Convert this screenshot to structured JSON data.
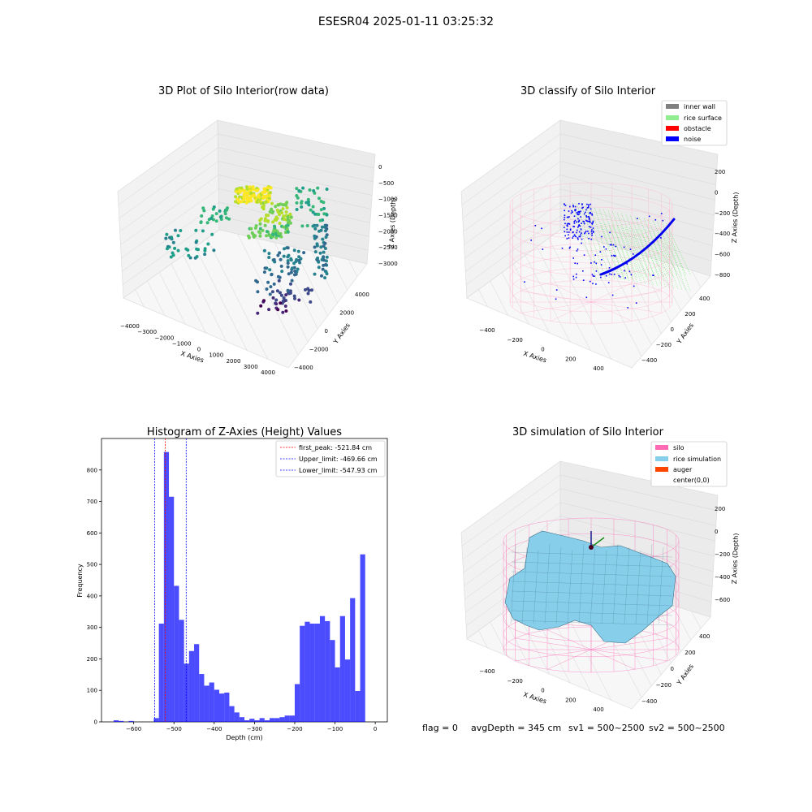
{
  "suptitle": "ESESR04 2025-01-11 03:25:32",
  "panels": {
    "raw": {
      "title": "3D Plot of Silo Interior(row data)",
      "xlabel": "X Axies",
      "ylabel": "Y Axies",
      "zlabel": "Z Axies (Depth)",
      "xticks": [
        "−4000",
        "−3000",
        "−2000",
        "−1000",
        "0",
        "1000",
        "2000",
        "3000",
        "4000"
      ],
      "yticks": [
        "−4000",
        "−2000",
        "0",
        "2000",
        "4000"
      ],
      "zticks": [
        "0",
        "−500",
        "−1000",
        "−1500",
        "−2000",
        "−2500",
        "−3000"
      ]
    },
    "classify": {
      "title": "3D classify of Silo Interior",
      "xlabel": "X Axies",
      "ylabel": "Y Axies",
      "zlabel": "Z Axies (Depth)",
      "xticks": [
        "−400",
        "−200",
        "0",
        "200",
        "400"
      ],
      "yticks": [
        "−400",
        "−200",
        "0",
        "200",
        "400"
      ],
      "zticks": [
        "200",
        "0",
        "−200",
        "−400",
        "−600",
        "−800"
      ],
      "legend": [
        {
          "label": "inner wall",
          "color": "#808080"
        },
        {
          "label": "rice surface",
          "color": "#90ee90"
        },
        {
          "label": "obstacle",
          "color": "#ff0000"
        },
        {
          "label": "noise",
          "color": "#0000ff"
        }
      ]
    },
    "simulation": {
      "title": "3D simulation of Silo Interior",
      "xlabel": "X Axies",
      "ylabel": "Y Axies",
      "zlabel": "Z Axies (Depth)",
      "xticks": [
        "−400",
        "−200",
        "0",
        "200",
        "400"
      ],
      "yticks": [
        "−400",
        "−200",
        "0",
        "200",
        "400"
      ],
      "zticks": [
        "200",
        "0",
        "−200",
        "−400",
        "−600"
      ],
      "legend": [
        {
          "label": "silo",
          "color": "#ff69b4"
        },
        {
          "label": "rice simulation",
          "color": "#87ceeb"
        },
        {
          "label": "auger",
          "color": "#ff4500"
        },
        {
          "label": "center(0,0)",
          "color": "#ffffff"
        }
      ]
    }
  },
  "info": {
    "flag": "flag = 0",
    "avg_depth": "avgDepth = 345 cm",
    "sv1": "sv1 = 500~2500",
    "sv2": "sv2 = 500~2500"
  },
  "chart_data": {
    "type": "bar",
    "title": "Histogram of Z-Axies (Height) Values",
    "xlabel": "Depth (cm)",
    "ylabel": "Frequency",
    "xlim": [
      -680,
      30
    ],
    "ylim": [
      0,
      900
    ],
    "xticks": [
      -600,
      -500,
      -400,
      -300,
      -200,
      -100,
      0
    ],
    "yticks": [
      0,
      100,
      200,
      300,
      400,
      500,
      600,
      700,
      800
    ],
    "bin_width": 12.5,
    "color": "#0000ff",
    "bins": [
      {
        "x": -650,
        "v": 5
      },
      {
        "x": -637.5,
        "v": 3
      },
      {
        "x": -612.5,
        "v": 3
      },
      {
        "x": -550,
        "v": 12
      },
      {
        "x": -537.5,
        "v": 312
      },
      {
        "x": -525,
        "v": 857
      },
      {
        "x": -512.5,
        "v": 715
      },
      {
        "x": -500,
        "v": 432
      },
      {
        "x": -487.5,
        "v": 324
      },
      {
        "x": -475,
        "v": 185
      },
      {
        "x": -462.5,
        "v": 225
      },
      {
        "x": -450,
        "v": 247
      },
      {
        "x": -437.5,
        "v": 152
      },
      {
        "x": -425,
        "v": 115
      },
      {
        "x": -412.5,
        "v": 125
      },
      {
        "x": -400,
        "v": 102
      },
      {
        "x": -387.5,
        "v": 90
      },
      {
        "x": -375,
        "v": 93
      },
      {
        "x": -362.5,
        "v": 50
      },
      {
        "x": -350,
        "v": 30
      },
      {
        "x": -337.5,
        "v": 15
      },
      {
        "x": -325,
        "v": 5
      },
      {
        "x": -312.5,
        "v": 10
      },
      {
        "x": -300,
        "v": 5
      },
      {
        "x": -287.5,
        "v": 12
      },
      {
        "x": -275,
        "v": 5
      },
      {
        "x": -262.5,
        "v": 12
      },
      {
        "x": -250,
        "v": 12
      },
      {
        "x": -237.5,
        "v": 15
      },
      {
        "x": -225,
        "v": 20
      },
      {
        "x": -212.5,
        "v": 20
      },
      {
        "x": -200,
        "v": 120
      },
      {
        "x": -187.5,
        "v": 305
      },
      {
        "x": -175,
        "v": 318
      },
      {
        "x": -162.5,
        "v": 312
      },
      {
        "x": -150,
        "v": 312
      },
      {
        "x": -137.5,
        "v": 336
      },
      {
        "x": -125,
        "v": 320
      },
      {
        "x": -112.5,
        "v": 260
      },
      {
        "x": -100,
        "v": 173
      },
      {
        "x": -87.5,
        "v": 336
      },
      {
        "x": -75,
        "v": 198
      },
      {
        "x": -62.5,
        "v": 393
      },
      {
        "x": -50,
        "v": 98
      },
      {
        "x": -37.5,
        "v": 532
      }
    ],
    "lines": [
      {
        "label": "first_peak: -521.84 cm",
        "x": -521.84,
        "color": "#ff0000"
      },
      {
        "label": "Upper_limit: -469.66 cm",
        "x": -469.66,
        "color": "#0000ff"
      },
      {
        "label": "Lower_limit: -547.93 cm",
        "x": -547.93,
        "color": "#0000ff"
      }
    ]
  }
}
